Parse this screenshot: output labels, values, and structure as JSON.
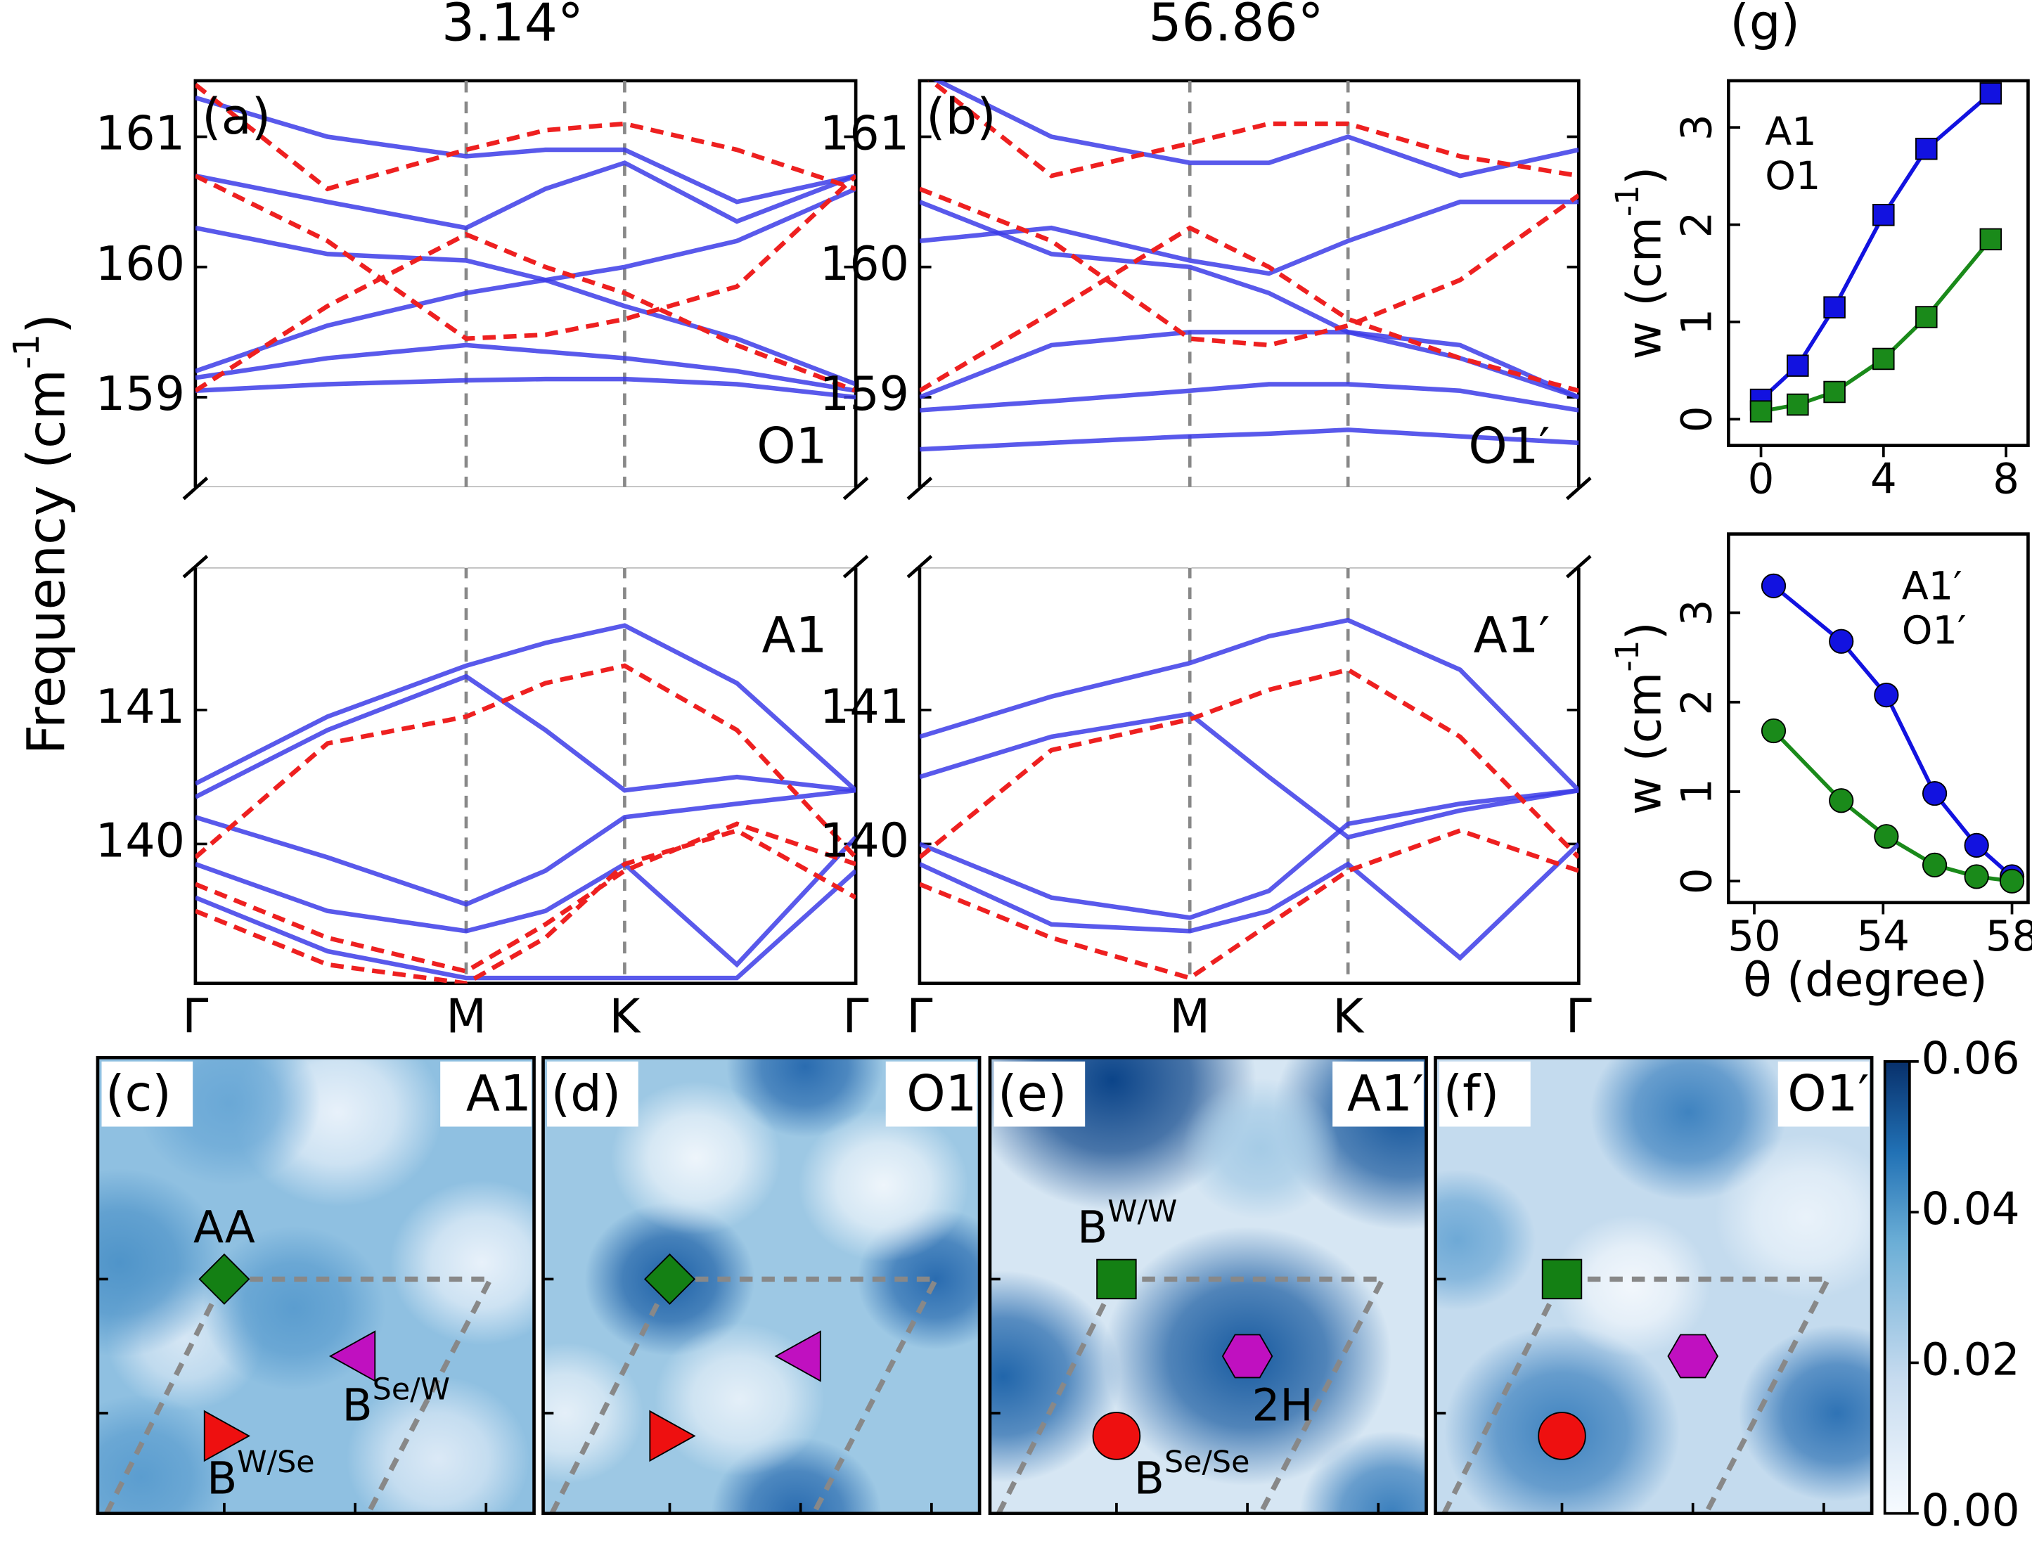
{
  "chart_data": [
    {
      "type": "line",
      "title": "3.14°",
      "panel": "(a)",
      "mode": "O1",
      "ylabel": {
        "text": "Frequency (cm",
        "sup": "-1",
        "tail": ")"
      },
      "x": [
        0,
        0.2,
        0.41,
        0.53,
        0.65,
        0.82,
        1
      ],
      "xlim": [
        0,
        1
      ],
      "vlines": [
        0.41,
        0.65
      ],
      "ylim": [
        158.3,
        161.43
      ],
      "yticks": [
        159,
        160,
        161
      ],
      "series": [
        {
          "color": "#3c3ce8",
          "values": [
            159.05,
            159.1,
            159.13,
            159.14,
            159.14,
            159.1,
            159.0
          ]
        },
        {
          "color": "#3c3ce8",
          "values": [
            159.15,
            159.3,
            159.4,
            159.35,
            159.3,
            159.2,
            159.05
          ]
        },
        {
          "color": "#3c3ce8",
          "values": [
            159.2,
            159.55,
            159.8,
            159.9,
            160.0,
            160.2,
            160.6
          ]
        },
        {
          "color": "#3c3ce8",
          "values": [
            160.7,
            160.5,
            160.3,
            160.6,
            160.8,
            160.35,
            160.7
          ]
        },
        {
          "color": "#3c3ce8",
          "values": [
            161.3,
            161.0,
            160.85,
            160.9,
            160.9,
            160.5,
            160.7
          ]
        },
        {
          "color": "#3c3ce8",
          "values": [
            160.3,
            160.1,
            160.05,
            159.9,
            159.7,
            159.45,
            159.1
          ]
        },
        {
          "color": "#ee2020",
          "dash": true,
          "values": [
            160.7,
            160.2,
            159.45,
            159.48,
            159.6,
            159.85,
            160.7
          ]
        },
        {
          "color": "#ee2020",
          "dash": true,
          "values": [
            159.05,
            159.7,
            160.25,
            160.0,
            159.8,
            159.4,
            159.05
          ]
        },
        {
          "color": "#ee2020",
          "dash": true,
          "values": [
            161.4,
            160.6,
            160.9,
            161.05,
            161.1,
            160.9,
            160.6
          ]
        }
      ]
    },
    {
      "type": "line",
      "mode": "A1",
      "x": [
        0,
        0.2,
        0.41,
        0.53,
        0.65,
        0.82,
        1
      ],
      "xlim": [
        0,
        1
      ],
      "xticks": [
        {
          "value": 0,
          "label": "Γ"
        },
        {
          "value": 0.41,
          "label": "M"
        },
        {
          "value": 0.65,
          "label": "K"
        },
        {
          "value": 1,
          "label": "Γ"
        }
      ],
      "ylim": [
        138.96,
        142.07
      ],
      "yticks": [
        140,
        141
      ],
      "series": [
        {
          "color": "#3c3ce8",
          "values": [
            140.45,
            140.95,
            141.33,
            141.5,
            141.63,
            141.2,
            140.4
          ]
        },
        {
          "color": "#3c3ce8",
          "values": [
            140.35,
            140.85,
            141.25,
            140.85,
            140.4,
            140.5,
            140.4
          ]
        },
        {
          "color": "#3c3ce8",
          "values": [
            140.2,
            139.9,
            139.55,
            139.8,
            140.2,
            140.3,
            140.4
          ]
        },
        {
          "color": "#3c3ce8",
          "values": [
            139.85,
            139.5,
            139.35,
            139.5,
            139.85,
            139.1,
            140.05
          ]
        },
        {
          "color": "#3c3ce8",
          "values": [
            139.6,
            139.2,
            139.0,
            139.0,
            139.0,
            139.0,
            139.8
          ]
        },
        {
          "color": "#ee2020",
          "dash": true,
          "values": [
            139.9,
            140.75,
            140.95,
            141.2,
            141.33,
            140.85,
            139.9
          ]
        },
        {
          "color": "#ee2020",
          "dash": true,
          "values": [
            139.7,
            139.3,
            139.05,
            139.4,
            139.8,
            140.15,
            139.85
          ]
        },
        {
          "color": "#ee2020",
          "dash": true,
          "values": [
            139.5,
            139.1,
            138.96,
            139.3,
            139.85,
            140.1,
            139.6
          ]
        }
      ]
    },
    {
      "type": "line",
      "title": "56.86°",
      "panel": "(b)",
      "mode": "O1′",
      "x": [
        0,
        0.2,
        0.41,
        0.53,
        0.65,
        0.82,
        1
      ],
      "xlim": [
        0,
        1
      ],
      "vlines": [
        0.41,
        0.65
      ],
      "ylim": [
        158.3,
        161.43
      ],
      "yticks": [
        159,
        160,
        161
      ],
      "series": [
        {
          "color": "#3c3ce8",
          "values": [
            158.6,
            158.65,
            158.7,
            158.72,
            158.75,
            158.7,
            158.65
          ]
        },
        {
          "color": "#3c3ce8",
          "values": [
            158.9,
            158.97,
            159.05,
            159.1,
            159.1,
            159.05,
            158.9
          ]
        },
        {
          "color": "#3c3ce8",
          "values": [
            159.0,
            159.4,
            159.5,
            159.5,
            159.5,
            159.4,
            159.0
          ]
        },
        {
          "color": "#3c3ce8",
          "values": [
            160.5,
            160.1,
            160.0,
            159.8,
            159.5,
            159.3,
            159.0
          ]
        },
        {
          "color": "#3c3ce8",
          "values": [
            161.5,
            161.0,
            160.8,
            160.8,
            161.0,
            160.7,
            160.9
          ]
        },
        {
          "color": "#3c3ce8",
          "values": [
            160.2,
            160.3,
            160.05,
            159.95,
            160.2,
            160.5,
            160.5
          ]
        },
        {
          "color": "#ee2020",
          "dash": true,
          "values": [
            160.6,
            160.2,
            159.45,
            159.4,
            159.55,
            159.9,
            160.55
          ]
        },
        {
          "color": "#ee2020",
          "dash": true,
          "values": [
            159.05,
            159.65,
            160.3,
            160.0,
            159.6,
            159.3,
            159.05
          ]
        },
        {
          "color": "#ee2020",
          "dash": true,
          "values": [
            161.5,
            160.7,
            160.95,
            161.1,
            161.1,
            160.85,
            160.7
          ]
        }
      ]
    },
    {
      "type": "line",
      "mode": "A1′",
      "x": [
        0,
        0.2,
        0.41,
        0.53,
        0.65,
        0.82,
        1
      ],
      "xlim": [
        0,
        1
      ],
      "xticks": [
        {
          "value": 0,
          "label": "Γ"
        },
        {
          "value": 0.41,
          "label": "M"
        },
        {
          "value": 0.65,
          "label": "K"
        },
        {
          "value": 1,
          "label": "Γ"
        }
      ],
      "ylim": [
        138.96,
        142.07
      ],
      "yticks": [
        140,
        141
      ],
      "series": [
        {
          "color": "#3c3ce8",
          "values": [
            140.8,
            141.1,
            141.35,
            141.55,
            141.67,
            141.3,
            140.4
          ]
        },
        {
          "color": "#3c3ce8",
          "values": [
            140.5,
            140.8,
            140.97,
            140.5,
            140.05,
            140.25,
            140.4
          ]
        },
        {
          "color": "#3c3ce8",
          "values": [
            140.0,
            139.6,
            139.45,
            139.65,
            140.15,
            140.3,
            140.4
          ]
        },
        {
          "color": "#3c3ce8",
          "values": [
            139.85,
            139.4,
            139.35,
            139.5,
            139.85,
            139.15,
            140.0
          ]
        },
        {
          "color": "#ee2020",
          "dash": true,
          "values": [
            139.9,
            140.7,
            140.93,
            141.15,
            141.3,
            140.8,
            139.9
          ]
        },
        {
          "color": "#ee2020",
          "dash": true,
          "values": [
            139.7,
            139.3,
            139.0,
            139.4,
            139.8,
            140.1,
            139.8
          ]
        }
      ]
    },
    {
      "type": "line",
      "panel": "(g)",
      "ylabel": {
        "text": "w (cm",
        "sup": "-1",
        "tail": ")"
      },
      "x": [
        0,
        1.2,
        2.4,
        4,
        5.4,
        7.5
      ],
      "xlim": [
        -1.06,
        8.72
      ],
      "xticks": [
        0,
        4,
        8
      ],
      "ylim": [
        -0.27,
        3.48
      ],
      "yticks": [
        0,
        1,
        2,
        3
      ],
      "series": [
        {
          "name": "A1",
          "color": "#1212e0",
          "marker": "square",
          "values": [
            0.2,
            0.55,
            1.15,
            2.1,
            2.78,
            3.35
          ]
        },
        {
          "name": "O1",
          "color": "#1a8a1a",
          "marker": "square",
          "values": [
            0.08,
            0.15,
            0.28,
            0.62,
            1.05,
            1.85
          ]
        }
      ]
    },
    {
      "type": "line",
      "ylabel": {
        "text": "w (cm",
        "sup": "-1",
        "tail": ")"
      },
      "xlabel": "θ (degree)",
      "x": [
        50.6,
        52.7,
        54.1,
        55.6,
        56.9,
        58.0
      ],
      "xlim": [
        49.2,
        58.5
      ],
      "xticks": [
        50,
        54,
        58
      ],
      "ylim": [
        -0.24,
        3.88
      ],
      "yticks": [
        0,
        1,
        2,
        3
      ],
      "series": [
        {
          "name": "A1′",
          "color": "#1212e0",
          "marker": "circle",
          "values": [
            3.3,
            2.68,
            2.08,
            0.98,
            0.4,
            0.05
          ]
        },
        {
          "name": "O1′",
          "color": "#1a8a1a",
          "marker": "circle",
          "values": [
            1.68,
            0.9,
            0.5,
            0.18,
            0.05,
            0.0
          ]
        }
      ]
    },
    {
      "type": "heatmap",
      "clim": [
        0,
        0.06
      ],
      "cticks": [
        {
          "value": 0,
          "label": "0.00"
        },
        {
          "value": 0.02,
          "label": "0.02"
        },
        {
          "value": 0.04,
          "label": "0.04"
        },
        {
          "value": 0.06,
          "label": "0.06"
        }
      ],
      "panels": [
        {
          "label": "(c)",
          "mode": "A1",
          "sites": [
            {
              "shape": "diamond",
              "color": "#148014"
            },
            {
              "shape": "triangle-left",
              "color": "#c010c0"
            },
            {
              "shape": "triangle-right",
              "color": "#ee1010"
            }
          ],
          "site_labels": [
            {
              "text": "AA"
            },
            {
              "text": "B",
              "sup": "Se/W"
            },
            {
              "text": "B",
              "sup": "W/Se"
            }
          ]
        },
        {
          "label": "(d)",
          "mode": "O1",
          "sites": [
            {
              "shape": "diamond",
              "color": "#148014"
            },
            {
              "shape": "triangle-left",
              "color": "#c010c0"
            },
            {
              "shape": "triangle-right",
              "color": "#ee1010"
            }
          ]
        },
        {
          "label": "(e)",
          "mode": "A1′",
          "sites": [
            {
              "shape": "square",
              "color": "#148014"
            },
            {
              "shape": "hexagon",
              "color": "#c010c0"
            },
            {
              "shape": "circle",
              "color": "#ee1010"
            }
          ],
          "site_labels": [
            {
              "text": "B",
              "sup": "W/W"
            },
            {
              "text": "2H"
            },
            {
              "text": "B",
              "sup": "Se/Se"
            }
          ]
        },
        {
          "label": "(f)",
          "mode": "O1′",
          "sites": [
            {
              "shape": "square",
              "color": "#148014"
            },
            {
              "shape": "hexagon",
              "color": "#c010c0"
            },
            {
              "shape": "circle",
              "color": "#ee1010"
            }
          ]
        }
      ]
    }
  ]
}
